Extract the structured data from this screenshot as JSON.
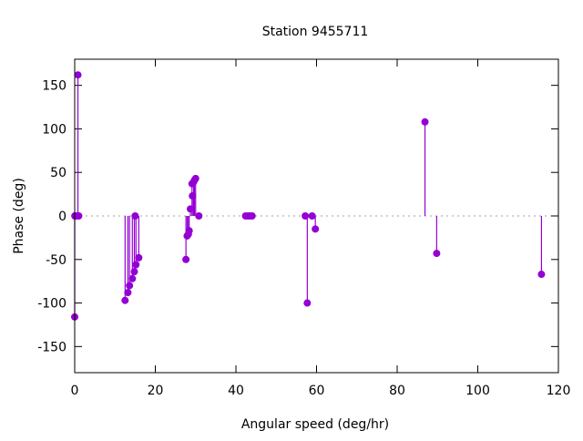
{
  "chart_data": {
    "type": "scatter",
    "style": "impulses-with-points",
    "title": "Station 9455711",
    "xlabel": "Angular speed (deg/hr)",
    "ylabel": "Phase (deg)",
    "xlim": [
      0,
      120
    ],
    "ylim": [
      -180,
      180
    ],
    "xticks": [
      0,
      20,
      40,
      60,
      80,
      100,
      120
    ],
    "yticks": [
      -150,
      -100,
      -50,
      0,
      50,
      100,
      150
    ],
    "grid": false,
    "zero_line": true,
    "series_color": "#9400d3",
    "points": [
      [
        0.0,
        -116
      ],
      [
        0.04,
        0
      ],
      [
        0.08,
        0
      ],
      [
        0.5,
        0
      ],
      [
        0.8,
        162
      ],
      [
        1.0,
        0
      ],
      [
        12.5,
        -97
      ],
      [
        13.2,
        -88
      ],
      [
        13.6,
        -80
      ],
      [
        14.3,
        -72
      ],
      [
        14.8,
        -64
      ],
      [
        15.0,
        0
      ],
      [
        15.2,
        -56
      ],
      [
        15.9,
        -48
      ],
      [
        27.6,
        -50
      ],
      [
        27.9,
        -23
      ],
      [
        28.2,
        -21
      ],
      [
        28.4,
        -17
      ],
      [
        28.7,
        8
      ],
      [
        29.2,
        23
      ],
      [
        29.1,
        37
      ],
      [
        29.5,
        39
      ],
      [
        29.7,
        41
      ],
      [
        30.0,
        43
      ],
      [
        30.8,
        0
      ],
      [
        42.4,
        0
      ],
      [
        43.0,
        0
      ],
      [
        43.5,
        0
      ],
      [
        44.0,
        0
      ],
      [
        57.2,
        0
      ],
      [
        57.7,
        -100
      ],
      [
        58.9,
        0
      ],
      [
        59.7,
        -15
      ],
      [
        86.9,
        108
      ],
      [
        89.8,
        -43
      ],
      [
        115.8,
        -67
      ]
    ]
  }
}
